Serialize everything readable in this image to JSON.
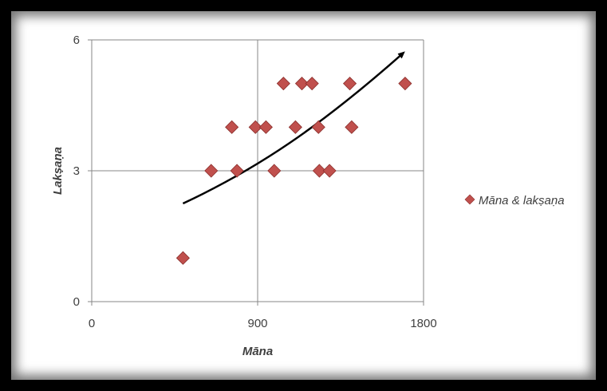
{
  "chart_data": {
    "type": "scatter",
    "title": "",
    "xlabel": "Māna",
    "ylabel": "Lakṣaṇa",
    "xlim": [
      0,
      1800
    ],
    "ylim": [
      0,
      6
    ],
    "xticks": [
      "0",
      "900",
      "1800"
    ],
    "yticks": [
      "0",
      "3",
      "6"
    ],
    "grid": true,
    "legend_position": "right",
    "series": [
      {
        "name": "Māna & lakṣaṇa",
        "color": "#c0504d",
        "marker": "diamond",
        "points": [
          {
            "x": 495,
            "y": 1
          },
          {
            "x": 648,
            "y": 3
          },
          {
            "x": 788,
            "y": 3
          },
          {
            "x": 760,
            "y": 4
          },
          {
            "x": 888,
            "y": 4
          },
          {
            "x": 945,
            "y": 4
          },
          {
            "x": 990,
            "y": 3
          },
          {
            "x": 1040,
            "y": 5
          },
          {
            "x": 1105,
            "y": 4
          },
          {
            "x": 1140,
            "y": 5
          },
          {
            "x": 1195,
            "y": 5
          },
          {
            "x": 1230,
            "y": 4
          },
          {
            "x": 1235,
            "y": 3
          },
          {
            "x": 1290,
            "y": 3
          },
          {
            "x": 1400,
            "y": 5
          },
          {
            "x": 1410,
            "y": 4
          },
          {
            "x": 1700,
            "y": 5
          }
        ]
      }
    ],
    "annotation": {
      "type": "trend-arrow",
      "points": [
        {
          "x": 495,
          "y": 2.25
        },
        {
          "x": 900,
          "y": 3.05
        },
        {
          "x": 1235,
          "y": 4.0
        },
        {
          "x": 1690,
          "y": 5.7
        }
      ]
    }
  }
}
